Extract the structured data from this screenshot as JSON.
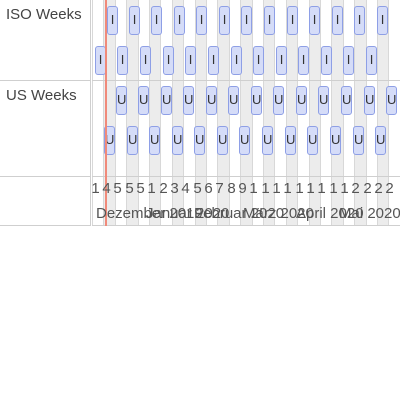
{
  "groups": [
    {
      "label": "ISO Weeks",
      "item_glyph": "I"
    },
    {
      "label": "US Weeks",
      "item_glyph": "U"
    }
  ],
  "week_numbers": [
    "1",
    "4",
    "5",
    "5",
    "5",
    "1",
    "2",
    "3",
    "4",
    "5",
    "6",
    "7",
    "8",
    "9",
    "1",
    "1",
    "1",
    "1",
    "1",
    "1",
    "1",
    "1",
    "1",
    "2",
    "2",
    "2",
    "2"
  ],
  "months": [
    "Dezember 2019",
    "Januar 2020",
    "Februar 2020",
    "März 2020",
    "April 2020",
    "Mai 2020"
  ]
}
